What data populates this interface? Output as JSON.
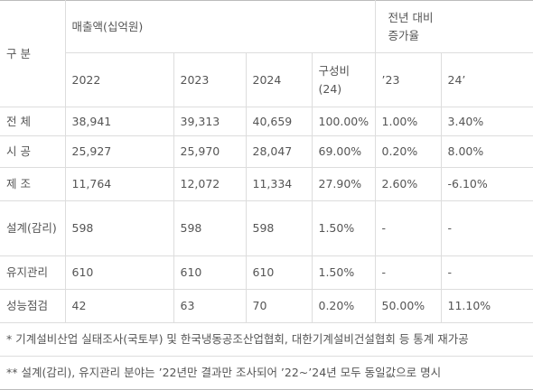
{
  "header": {
    "category": "구 분",
    "sales": "매출액(십억원)",
    "growth": "전년 대비\n증가율",
    "years": [
      "2022",
      "2023",
      "2024",
      "구성비\n(24)",
      "’23",
      "24’"
    ]
  },
  "table": {
    "rows": [
      [
        "전 체",
        "38,941",
        "39,313",
        "40,659",
        "100.00%",
        "1.00%",
        "3.40%"
      ],
      [
        "시 공",
        "25,927",
        "25,970",
        "28,047",
        "69.00%",
        "0.20%",
        "8.00%"
      ],
      [
        "제 조",
        "11,764",
        "12,072",
        "11,334",
        "27.90%",
        "2.60%",
        "-6.10%"
      ],
      [
        "설계(감리)",
        "598",
        "598",
        "598",
        "1.50%",
        "-",
        "-"
      ],
      [
        "유지관리",
        "610",
        "610",
        "610",
        "1.50%",
        "-",
        "-"
      ],
      [
        "성능점검",
        "42",
        "63",
        "70",
        "0.20%",
        "50.00%",
        "11.10%"
      ]
    ]
  },
  "notes": [
    "* 기계설비산업 실태조사(국토부) 및 한국냉동공조산업협회, 대한기계설비건설협회 등 통계 재가공",
    "** 설계(감리), 유지관리 분야는 ’22년만 결과만 조사되어 ’22~’24년 모두 동일값으로 명시"
  ]
}
